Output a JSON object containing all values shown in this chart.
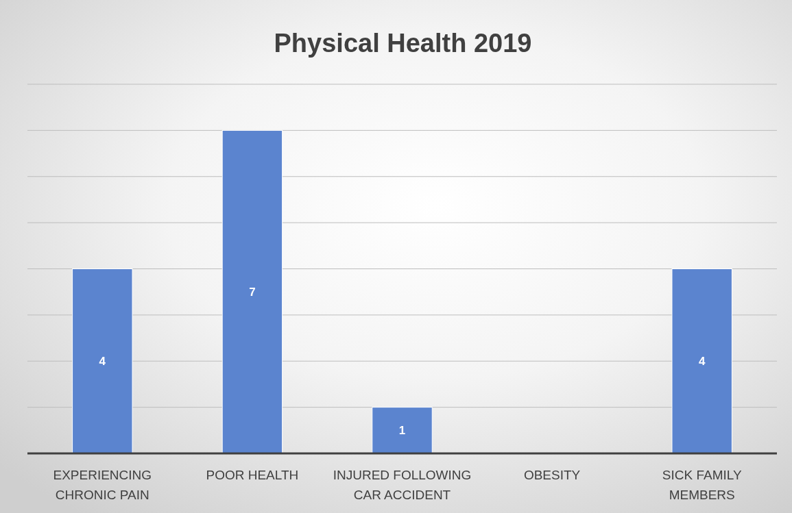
{
  "chart_data": {
    "type": "bar",
    "title": "Physical Health 2019",
    "categories": [
      "EXPERIENCING CHRONIC PAIN",
      "POOR HEALTH",
      "INJURED FOLLOWING CAR ACCIDENT",
      "OBESITY",
      "SICK FAMILY MEMBERS"
    ],
    "values": [
      4,
      7,
      1,
      0,
      4
    ],
    "value_labels": [
      "4",
      "7",
      "1",
      null,
      "4"
    ],
    "color": "#5b84cf",
    "ylim": [
      0,
      8
    ],
    "yticks": [
      {
        "value": 0,
        "label": null
      },
      {
        "value": 1,
        "label": null
      },
      {
        "value": 2,
        "label": null
      },
      {
        "value": 3,
        "label": null
      },
      {
        "value": 4,
        "label": null
      },
      {
        "value": 5,
        "label": null
      },
      {
        "value": 6,
        "label": null
      },
      {
        "value": 7,
        "label": null
      },
      {
        "value": 8,
        "label": null
      }
    ],
    "tick_labels": "x",
    "grid": "y"
  }
}
